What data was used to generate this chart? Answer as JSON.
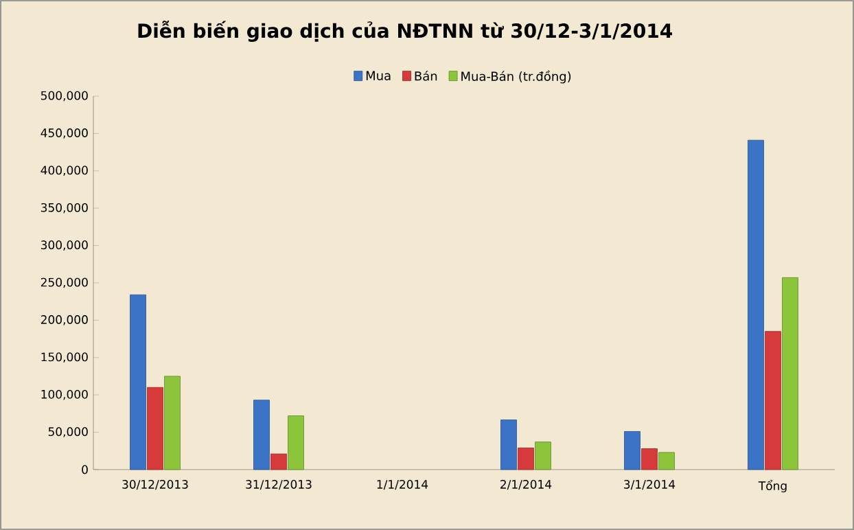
{
  "chart_data": {
    "type": "bar",
    "title": "Diễn biến giao dịch của NĐTNN từ 30/12-3/1/2014",
    "categories": [
      "30/12/2013",
      "31/12/2013",
      "1/1/2014",
      "2/1/2014",
      "3/1/2014",
      "Tổng"
    ],
    "series": [
      {
        "name": "Mua",
        "color": "#3b74c6",
        "values": [
          234000,
          93000,
          null,
          66500,
          51000,
          441000
        ]
      },
      {
        "name": "Bán",
        "color": "#d63a3a",
        "values": [
          110000,
          21000,
          null,
          29000,
          28000,
          185000
        ]
      },
      {
        "name": "Mua-Bán (tr.đồng)",
        "color": "#8cc43c",
        "values": [
          125000,
          72000,
          null,
          37000,
          23000,
          257000
        ]
      }
    ],
    "ylim": [
      0,
      500000
    ],
    "yticks": [
      {
        "value": 0,
        "label": "0"
      },
      {
        "value": 50000,
        "label": "50,000"
      },
      {
        "value": 100000,
        "label": "100,000"
      },
      {
        "value": 150000,
        "label": "150,000"
      },
      {
        "value": 200000,
        "label": "200,000"
      },
      {
        "value": 250000,
        "label": "250,000"
      },
      {
        "value": 300000,
        "label": "300,000"
      },
      {
        "value": 350000,
        "label": "350,000"
      },
      {
        "value": 400000,
        "label": "400,000"
      },
      {
        "value": 450000,
        "label": "450,000"
      },
      {
        "value": 500000,
        "label": "500,000"
      }
    ],
    "legend": "top",
    "grid": false
  }
}
